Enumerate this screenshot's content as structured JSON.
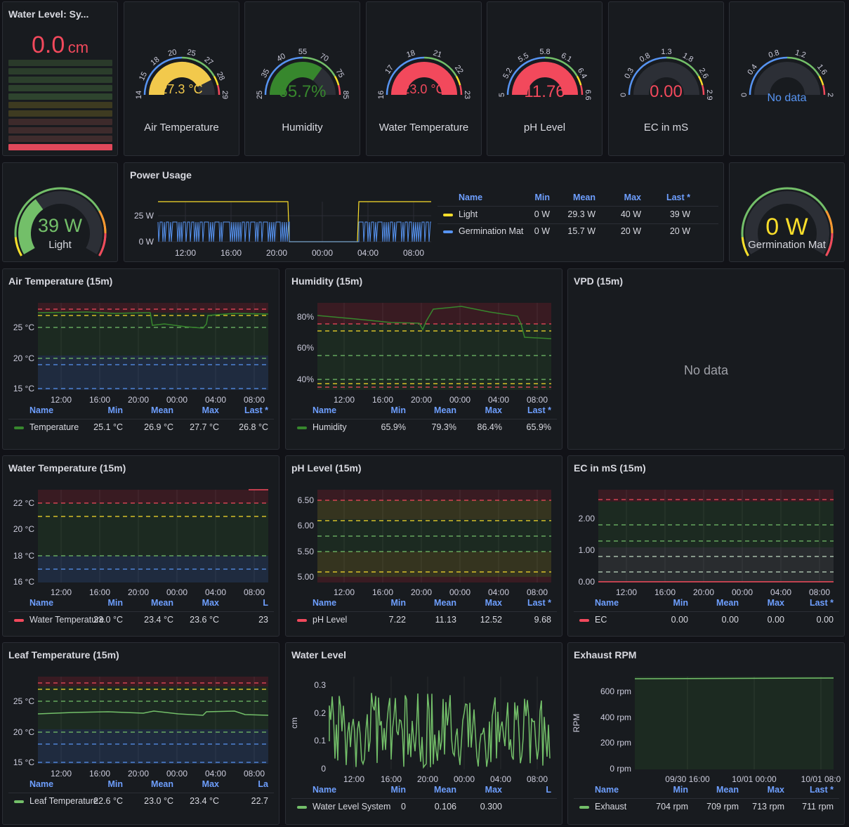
{
  "water_level_stat": {
    "title": "Water Level: Sy...",
    "value": "0.0",
    "unit": "cm"
  },
  "gauges": [
    {
      "title": "Air Temperature",
      "value": "27.3 °C",
      "fill": 0.85,
      "color": "#f2c94c",
      "ticks": [
        "14",
        "15",
        "18",
        "20",
        "25",
        "27",
        "28",
        "29"
      ]
    },
    {
      "title": "Humidity",
      "value": "65.7%",
      "fill": 0.7,
      "color": "#37872d",
      "ticks": [
        "25",
        "35",
        "40",
        "55",
        "70",
        "75",
        "85"
      ]
    },
    {
      "title": "Water Temperature",
      "value": "23.0 °C",
      "fill": 1.0,
      "color": "#f2495c",
      "ticks": [
        "16",
        "17",
        "18",
        "21",
        "22",
        "23"
      ]
    },
    {
      "title": "pH Level",
      "value": "11.76",
      "fill": 1.0,
      "color": "#f2495c",
      "ticks": [
        "5",
        "5.2",
        "5.5",
        "5.8",
        "6.1",
        "6.4",
        "6.6"
      ]
    },
    {
      "title": "EC in mS",
      "value": "0.00",
      "fill": 0.0,
      "color": "#f2495c",
      "ticks": [
        "0",
        "0.3",
        "0.8",
        "1.3",
        "1.8",
        "2.6",
        "2.9"
      ]
    },
    {
      "title": "",
      "value": "No data",
      "fill": 0.0,
      "color": "#5794f2",
      "ticks": [
        "0",
        "0.4",
        "0.8",
        "1.2",
        "1.6",
        "2"
      ]
    }
  ],
  "light_gauge": {
    "value": "39 W",
    "label": "Light",
    "fill": 0.35
  },
  "germ_gauge": {
    "value": "0 W",
    "label": "Germination Mat",
    "fill": 0.0
  },
  "power": {
    "title": "Power Usage",
    "yticks": [
      "25 W",
      "0 W"
    ],
    "xticks": [
      "12:00",
      "16:00",
      "20:00",
      "00:00",
      "04:00",
      "08:00"
    ],
    "legend_headers": [
      "Name",
      "Min",
      "Mean",
      "Max",
      "Last *"
    ],
    "rows": [
      {
        "name": "Light",
        "color": "#fade2a",
        "vals": [
          "0 W",
          "29.3 W",
          "40 W",
          "39 W"
        ]
      },
      {
        "name": "Germination Mat",
        "color": "#5794f2",
        "vals": [
          "0 W",
          "15.7 W",
          "20 W",
          "20 W"
        ]
      }
    ]
  },
  "legend_headers": [
    "Name",
    "Min",
    "Mean",
    "Max",
    "Last *"
  ],
  "time_ticks": [
    "12:00",
    "16:00",
    "20:00",
    "00:00",
    "04:00",
    "08:00"
  ],
  "air": {
    "title": "Air Temperature (15m)",
    "yticks": [
      "25 °C",
      "20 °C",
      "15 °C"
    ],
    "row": {
      "name": "Temperature",
      "color": "#37872d",
      "vals": [
        "25.1 °C",
        "26.9 °C",
        "27.7 °C",
        "26.8 °C"
      ]
    }
  },
  "hum": {
    "title": "Humidity (15m)",
    "yticks": [
      "80%",
      "60%",
      "40%"
    ],
    "row": {
      "name": "Humidity",
      "color": "#37872d",
      "vals": [
        "65.9%",
        "79.3%",
        "86.4%",
        "65.9%"
      ]
    }
  },
  "vpd": {
    "title": "VPD (15m)",
    "nodata": "No data"
  },
  "wtemp": {
    "title": "Water Temperature (15m)",
    "yticks": [
      "22 °C",
      "20 °C",
      "18 °C",
      "16 °C"
    ],
    "headers": [
      "Name",
      "Min",
      "Mean",
      "Max",
      "L"
    ],
    "row": {
      "name": "Water Temperature",
      "color": "#f2495c",
      "vals": [
        "23.0 °C",
        "23.4 °C",
        "23.6 °C",
        "23"
      ]
    }
  },
  "ph": {
    "title": "pH Level (15m)",
    "yticks": [
      "6.50",
      "6.00",
      "5.50",
      "5.00"
    ],
    "row": {
      "name": "pH Level",
      "color": "#f2495c",
      "vals": [
        "7.22",
        "11.13",
        "12.52",
        "9.68"
      ]
    }
  },
  "ec": {
    "title": "EC in mS (15m)",
    "yticks": [
      "2.00",
      "1.00",
      "0.00"
    ],
    "row": {
      "name": "EC",
      "color": "#f2495c",
      "vals": [
        "0.00",
        "0.00",
        "0.00",
        "0.00"
      ]
    }
  },
  "leaf": {
    "title": "Leaf Temperature (15m)",
    "yticks": [
      "25 °C",
      "20 °C",
      "15 °C"
    ],
    "headers": [
      "Name",
      "Min",
      "Mean",
      "Max",
      "La"
    ],
    "row": {
      "name": "Leaf Temperature",
      "color": "#73bf69",
      "vals": [
        "22.6 °C",
        "23.0 °C",
        "23.4 °C",
        "22.7"
      ]
    }
  },
  "wl": {
    "title": "Water Level",
    "ylabel": "cm",
    "yticks": [
      "0.3",
      "0.2",
      "0.1",
      "0"
    ],
    "headers": [
      "Name",
      "Min",
      "Mean",
      "Max",
      "L"
    ],
    "row": {
      "name": "Water Level System",
      "color": "#73bf69",
      "vals": [
        "0",
        "0.106",
        "0.300",
        ""
      ]
    }
  },
  "rpm": {
    "title": "Exhaust RPM",
    "ylabel": "RPM",
    "yticks": [
      "600 rpm",
      "400 rpm",
      "200 rpm",
      "0 rpm"
    ],
    "xticks": [
      "09/30 16:00",
      "10/01 00:00",
      "10/01 08:0"
    ],
    "row": {
      "name": "Exhaust",
      "color": "#73bf69",
      "vals": [
        "704 rpm",
        "709 rpm",
        "713 rpm",
        "711 rpm"
      ]
    }
  }
}
